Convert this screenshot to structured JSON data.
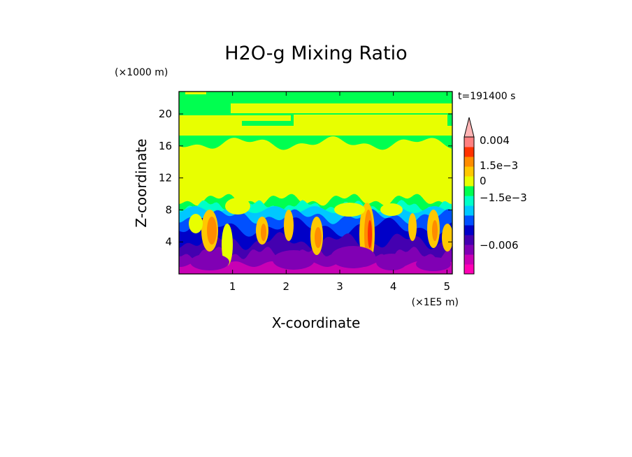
{
  "chart_data": {
    "type": "heatmap",
    "title": "H2O-g Mixing Ratio",
    "xlabel": "X-coordinate",
    "ylabel": "Z-coordinate",
    "x_unit": "(×1E5 m)",
    "y_unit": "(×1000 m)",
    "time_label": "t=191400 s",
    "xlim": [
      0,
      5.1
    ],
    "ylim": [
      0,
      22.8
    ],
    "x_ticks": [
      1,
      2,
      3,
      4,
      5
    ],
    "x_tick_labels": [
      "1",
      "2",
      "3",
      "4",
      "5"
    ],
    "y_ticks": [
      4,
      8,
      12,
      16,
      20
    ],
    "y_tick_labels": [
      "4",
      "8",
      "12",
      "16",
      "20"
    ],
    "colorbar": {
      "colors": [
        "#ff00b4",
        "#c800b4",
        "#8000b4",
        "#4400b0",
        "#0000c8",
        "#0050ff",
        "#00c8ff",
        "#00ffc8",
        "#00ff50",
        "#e8ff00",
        "#ffc800",
        "#ff8c00",
        "#ff3200",
        "#ff8080",
        "#ffb4b4"
      ],
      "labels": [
        {
          "level": "0.004",
          "text": "0.004"
        },
        {
          "level": "1.5e-3",
          "text": "1.5e−3"
        },
        {
          "level": "0",
          "text": "0"
        },
        {
          "level": "-1.5e-3",
          "text": "−1.5e−3"
        },
        {
          "level": "-0.006",
          "text": "−0.006"
        }
      ]
    },
    "field_layers_description_free": true
  }
}
